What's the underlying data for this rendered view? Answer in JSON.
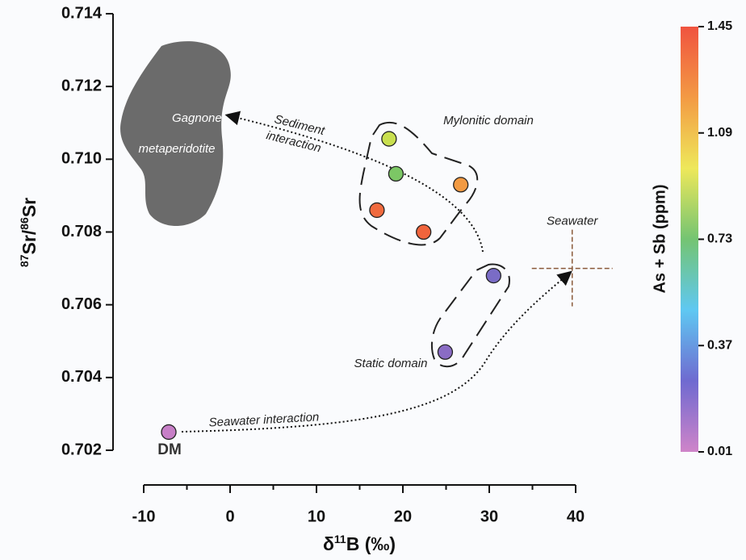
{
  "chart_data": {
    "type": "scatter",
    "y_label": [
      "87",
      "Sr/",
      "86",
      "Sr"
    ],
    "x_label": [
      "δ",
      "11",
      "B (‰)"
    ],
    "xlim": [
      -10,
      40
    ],
    "xticks": [
      -10,
      0,
      10,
      20,
      30,
      40
    ],
    "xminorticks": [
      -5,
      5,
      15,
      25,
      35
    ],
    "ylim": [
      0.702,
      0.714
    ],
    "yticks": [
      0.702,
      0.704,
      0.706,
      0.708,
      {
        "value": 0.71,
        "label": "0.710"
      },
      0.712,
      0.714
    ],
    "series": [
      {
        "x": [
          -7.1,
          18.4,
          19.2,
          26.7,
          17.0,
          22.4,
          30.5,
          24.9
        ],
        "values": [
          0.7025,
          0.71056,
          0.7096,
          0.7093,
          0.7086,
          0.708,
          0.7068,
          0.7047
        ],
        "c": [
          0.05,
          1.1,
          0.85,
          1.35,
          1.42,
          1.43,
          0.3,
          0.28
        ],
        "colors": [
          "#c77fc7",
          "#c9df4f",
          "#7cc765",
          "#f29a42",
          "#f06a3e",
          "#f0643c",
          "#7a6cc6",
          "#8a6cc4"
        ]
      }
    ],
    "colorbar": {
      "label": "As + Sb (ppm)",
      "lim": [
        0.01,
        1.45
      ],
      "ticks": [
        0.01,
        0.37,
        0.73,
        1.09,
        1.45
      ],
      "colormap": [
        "#cf84c9",
        "#6f6ad0",
        "#5fc8f2",
        "#74c472",
        "#eee85a",
        "#f39a44",
        "#f0533f"
      ]
    },
    "seawater": {
      "x": 39.6,
      "y": 0.707,
      "label": "Seawater"
    },
    "annotations": {
      "dm": "DM",
      "gagnone": "Gagnone",
      "metaperidotite": "metaperidotite",
      "sediment": "Sediment",
      "interaction": "interaction",
      "mylonitic": "Mylonitic domain",
      "static": "Static domain",
      "seawater_interaction": "Seawater interaction"
    }
  }
}
